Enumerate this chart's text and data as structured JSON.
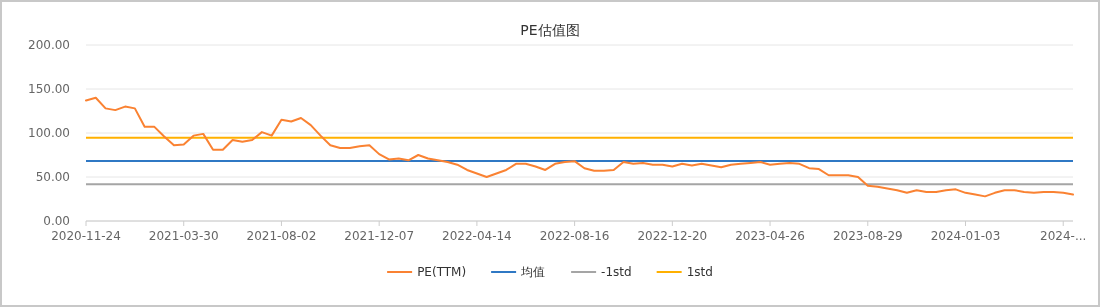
{
  "chart_data": {
    "type": "line",
    "title": "PE估值图",
    "categories": [
      "2020-11-24",
      null,
      null,
      null,
      null,
      null,
      null,
      null,
      null,
      null,
      "2021-03-30",
      null,
      null,
      null,
      null,
      null,
      null,
      null,
      null,
      null,
      "2021-08-02",
      null,
      null,
      null,
      null,
      null,
      null,
      null,
      null,
      null,
      "2021-12-07",
      null,
      null,
      null,
      null,
      null,
      null,
      null,
      null,
      null,
      "2022-04-14",
      null,
      null,
      null,
      null,
      null,
      null,
      null,
      null,
      null,
      "2022-08-16",
      null,
      null,
      null,
      null,
      null,
      null,
      null,
      null,
      null,
      "2022-12-20",
      null,
      null,
      null,
      null,
      null,
      null,
      null,
      null,
      null,
      "2023-04-26",
      null,
      null,
      null,
      null,
      null,
      null,
      null,
      null,
      null,
      "2023-08-29",
      null,
      null,
      null,
      null,
      null,
      null,
      null,
      null,
      null,
      "2024-01-03",
      null,
      null,
      null,
      null,
      null,
      null,
      null,
      null,
      null,
      "2024-...",
      null
    ],
    "series": [
      {
        "name": "PE(TTM)",
        "color": "#fa8232",
        "values": [
          137,
          140,
          128,
          126,
          130,
          128,
          107,
          107,
          96,
          86,
          87,
          97,
          99,
          81,
          81,
          92,
          90,
          92,
          101,
          97,
          115,
          113,
          117,
          109,
          97,
          86,
          83,
          83,
          85,
          86,
          76,
          70,
          71,
          69,
          75,
          71,
          69,
          67,
          64,
          58,
          54,
          50,
          54,
          58,
          65,
          65,
          62,
          58,
          65,
          67,
          68,
          60,
          57,
          57,
          58,
          67,
          65,
          66,
          64,
          64,
          62,
          65,
          63,
          65,
          63,
          61,
          64,
          65,
          66,
          67,
          64,
          65,
          66,
          65,
          60,
          59,
          52,
          52,
          52,
          50,
          40,
          39,
          37,
          35,
          32,
          35,
          33,
          33,
          35,
          36,
          32,
          30,
          28,
          32,
          35,
          35,
          33,
          32,
          33,
          33,
          32,
          30
        ]
      }
    ],
    "ref_lines": [
      {
        "axis": "y",
        "value": 68.2,
        "label": "均值",
        "color": "#2f78c4"
      },
      {
        "axis": "y",
        "value": 41.7,
        "label": "-1std",
        "color": "#a5a5a5"
      },
      {
        "axis": "y",
        "value": 94.7,
        "label": "1std",
        "color": "#ffb000"
      }
    ],
    "ylim": [
      0,
      200
    ],
    "yticks": [
      {
        "value": 0,
        "label": "0.00"
      },
      {
        "value": 50,
        "label": "50.00"
      },
      {
        "value": 100,
        "label": "100.00"
      },
      {
        "value": 150,
        "label": "150.00"
      },
      {
        "value": 200,
        "label": "200.00"
      }
    ],
    "grid": "y",
    "legend": "bottom"
  }
}
